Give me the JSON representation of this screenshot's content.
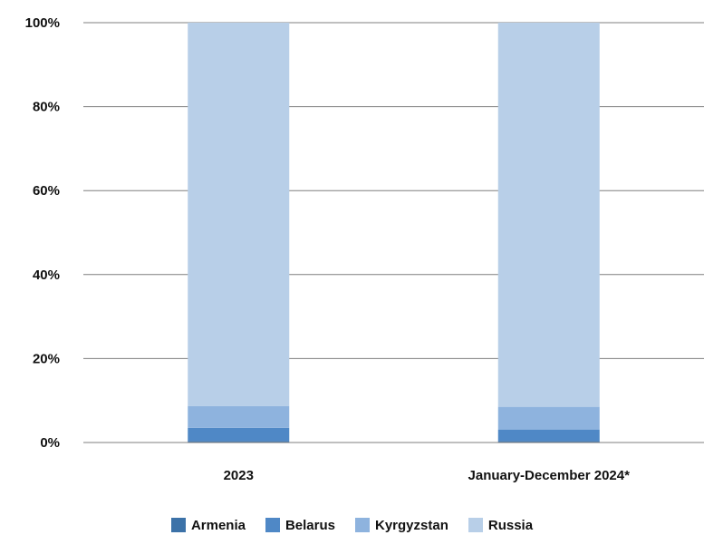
{
  "chart_data": {
    "type": "bar",
    "stacked": true,
    "normalized": true,
    "categories": [
      "2023",
      "January-December 2024*"
    ],
    "series": [
      {
        "name": "Armenia",
        "color": "#3c72a8",
        "values": [
          0.3,
          0.3
        ]
      },
      {
        "name": "Belarus",
        "color": "#4f88c6",
        "values": [
          3.2,
          2.8
        ]
      },
      {
        "name": "Kyrgyzstan",
        "color": "#8eb3de",
        "values": [
          5.2,
          5.4
        ]
      },
      {
        "name": "Russia",
        "color": "#b8cfe8",
        "values": [
          91.3,
          91.5
        ]
      }
    ],
    "yticks": [
      "0%",
      "20%",
      "40%",
      "60%",
      "80%",
      "100%"
    ],
    "ylim": [
      0,
      100
    ],
    "grid": true,
    "legend_position": "bottom",
    "title": "",
    "xlabel": "",
    "ylabel": ""
  }
}
